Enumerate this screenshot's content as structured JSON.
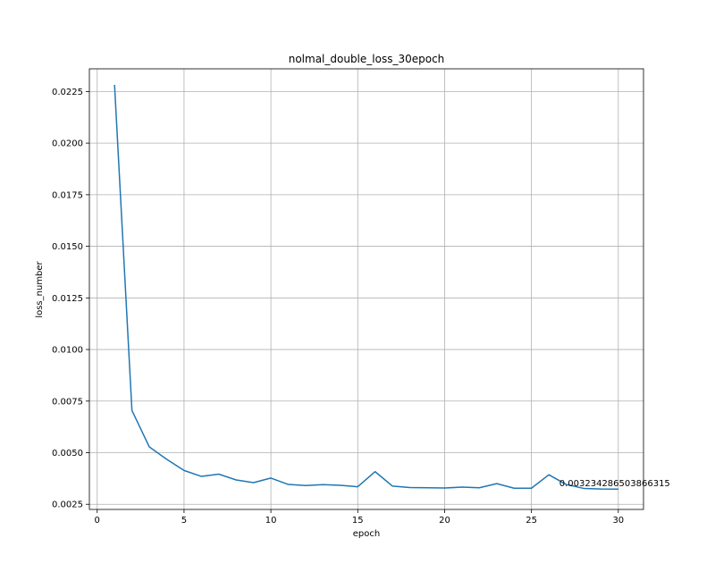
{
  "chart_data": {
    "type": "line",
    "title": "nolmal_double_loss_30epoch",
    "xlabel": "epoch",
    "ylabel": "loss_number",
    "xlim": [
      -0.45,
      31.45
    ],
    "ylim": [
      0.00225,
      0.0236
    ],
    "grid": true,
    "x_ticks": [
      0,
      5,
      10,
      15,
      20,
      25,
      30
    ],
    "x_tick_labels": [
      "0",
      "5",
      "10",
      "15",
      "20",
      "25",
      "30"
    ],
    "y_ticks": [
      0.0025,
      0.005,
      0.0075,
      0.01,
      0.0125,
      0.015,
      0.0175,
      0.02,
      0.0225
    ],
    "y_tick_labels": [
      "0.0025",
      "0.0050",
      "0.0075",
      "0.0100",
      "0.0125",
      "0.0150",
      "0.0175",
      "0.0200",
      "0.0225"
    ],
    "series": [
      {
        "color": "#1f77b4",
        "x": [
          1,
          2,
          3,
          4,
          5,
          6,
          7,
          8,
          9,
          10,
          11,
          12,
          13,
          14,
          15,
          16,
          17,
          18,
          19,
          20,
          21,
          22,
          23,
          24,
          25,
          26,
          27,
          28,
          29,
          30
        ],
        "y": [
          0.02282,
          0.00705,
          0.00528,
          0.00468,
          0.00414,
          0.00385,
          0.00396,
          0.00368,
          0.00355,
          0.00377,
          0.00346,
          0.00341,
          0.00345,
          0.00342,
          0.00335,
          0.00408,
          0.00338,
          0.00331,
          0.0033,
          0.00329,
          0.00333,
          0.0033,
          0.0035,
          0.00328,
          0.00328,
          0.00393,
          0.00346,
          0.00327,
          0.00324,
          0.003234286503866315
        ]
      }
    ],
    "annotations": [
      {
        "text": "0.003234286503866315",
        "x": 26.6,
        "y": 0.00337
      }
    ]
  }
}
